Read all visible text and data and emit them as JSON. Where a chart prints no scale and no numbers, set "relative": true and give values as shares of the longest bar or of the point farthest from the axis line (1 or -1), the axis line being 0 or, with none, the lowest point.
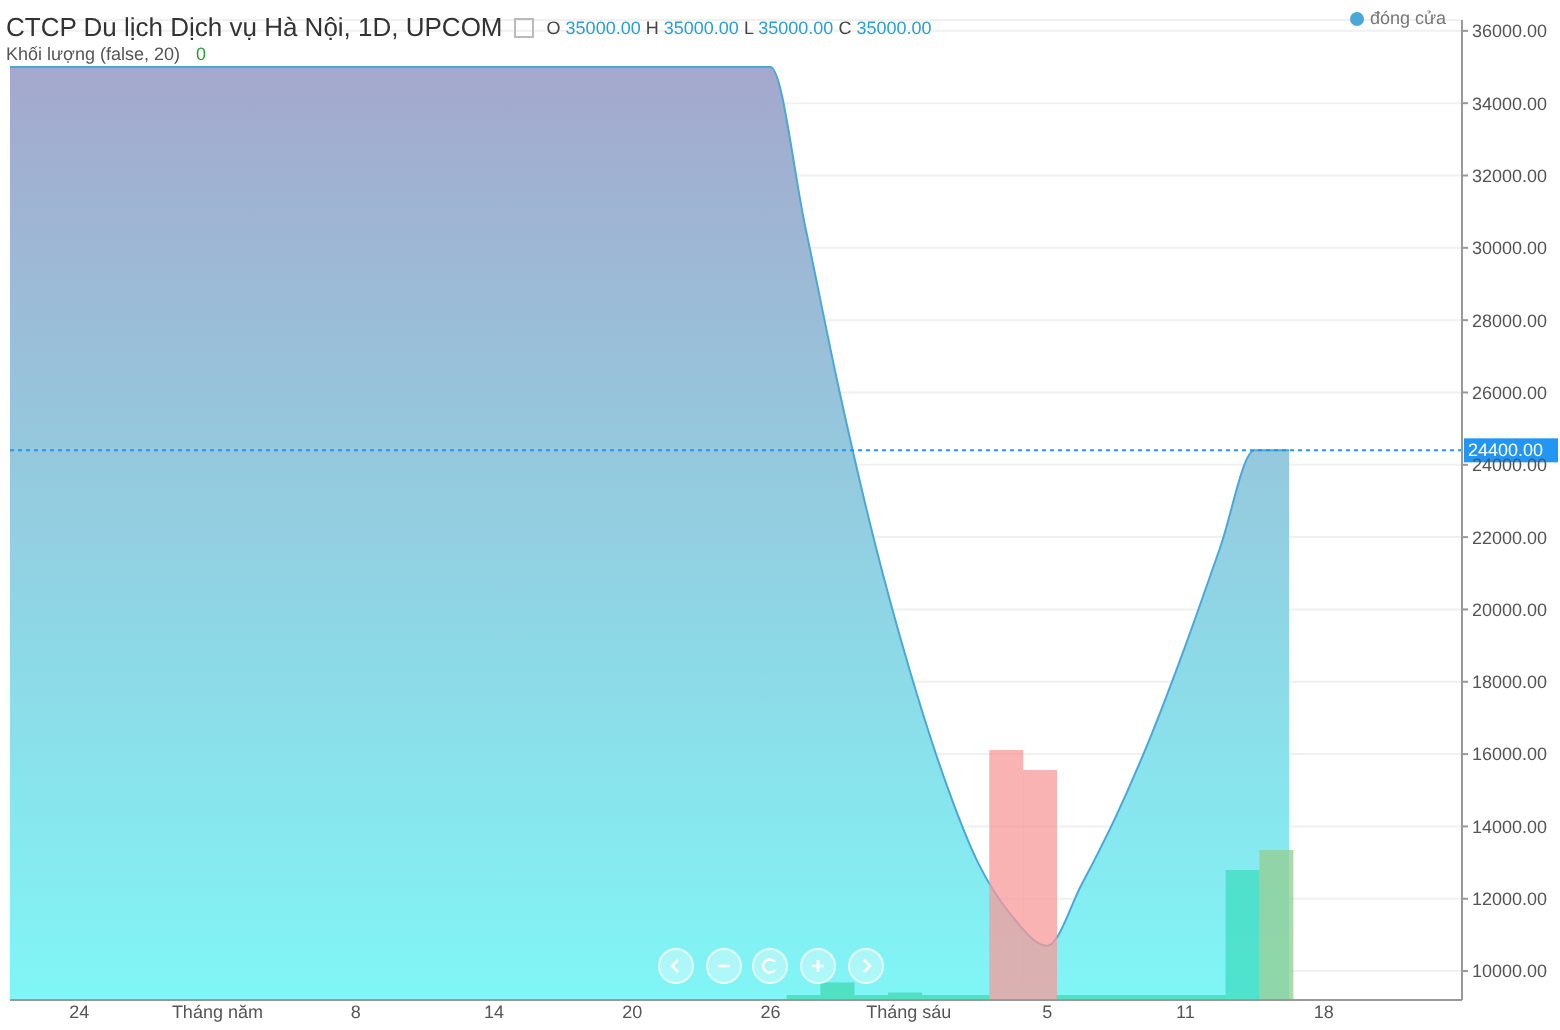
{
  "chart_data": [
    {
      "type": "area",
      "title": "CTCP Du lịch Dịch vụ Hà Nội, 1D, UPCOM",
      "annotations": [
        "O 35000.00 H 35000.00 L 35000.00 C 35000.00"
      ],
      "categories": [
        null,
        null,
        "24",
        null,
        null,
        null,
        "Tháng năm",
        null,
        null,
        null,
        "8",
        null,
        null,
        null,
        "14",
        null,
        null,
        null,
        "20",
        null,
        null,
        null,
        "26",
        null,
        null,
        null,
        "Tháng sáu",
        null,
        null,
        null,
        "5",
        null,
        null,
        null,
        "11",
        null,
        null,
        null,
        "18",
        null,
        null,
        null,
        null
      ],
      "series": [
        {
          "name": "đóng cửa",
          "color": "#4aa8d8",
          "values": [
            35000,
            35000,
            35000,
            35000,
            35000,
            35000,
            35000,
            35000,
            35000,
            35000,
            35000,
            35000,
            35000,
            35000,
            35000,
            35000,
            35000,
            35000,
            35000,
            35000,
            35000,
            35000,
            35000,
            30600,
            26000,
            21900,
            18400,
            15400,
            13000,
            11500,
            10700,
            12400,
            14300,
            16500,
            19000,
            21700,
            24400,
            24400,
            null,
            null,
            null,
            null,
            null
          ]
        }
      ],
      "ylim": [
        9200,
        36300
      ],
      "yticks": [
        {
          "value": 10000,
          "label": "10000.00"
        },
        {
          "value": 12000,
          "label": "12000.00"
        },
        {
          "value": 14000,
          "label": "14000.00"
        },
        {
          "value": 16000,
          "label": "16000.00"
        },
        {
          "value": 18000,
          "label": "18000.00"
        },
        {
          "value": 20000,
          "label": "20000.00"
        },
        {
          "value": 22000,
          "label": "22000.00"
        },
        {
          "value": 24000,
          "label": "24000.00"
        },
        {
          "value": 26000,
          "label": "26000.00"
        },
        {
          "value": 28000,
          "label": "28000.00"
        },
        {
          "value": 30000,
          "label": "30000.00"
        },
        {
          "value": 32000,
          "label": "32000.00"
        },
        {
          "value": 34000,
          "label": "34000.00"
        },
        {
          "value": 36000,
          "label": "36000.00"
        }
      ],
      "ref_lines": [
        {
          "axis": "y",
          "value": 24400,
          "label": "24400.00",
          "color": "#2196f3",
          "line_style": "dotted"
        }
      ],
      "grid": "y",
      "legend": "top right",
      "marker": "none"
    },
    {
      "type": "bar",
      "title": "Khối lượng (false, 20)",
      "annotations": [
        "0"
      ],
      "relative": true,
      "tick_labels": false,
      "values": [
        null,
        null,
        null,
        null,
        null,
        null,
        null,
        null,
        null,
        null,
        null,
        null,
        null,
        null,
        null,
        null,
        null,
        null,
        null,
        null,
        null,
        null,
        null,
        0.02,
        0.07,
        0.02,
        0.03,
        0.02,
        0.02,
        1,
        0.92,
        0.02,
        0.02,
        0.02,
        0.02,
        0.02,
        0.52,
        0.6,
        null,
        null,
        null,
        null,
        null
      ],
      "colors": [
        "#40d8b0",
        "#40d8b0",
        "#40d8b0",
        "#40d8b0",
        "#40d8b0",
        "#40d8b0",
        "#40d8b0",
        "#40d8b0",
        "#40d8b0",
        "#40d8b0",
        "#40d8b0",
        "#40d8b0",
        "#40d8b0",
        "#40d8b0",
        "#40d8b0",
        "#40d8b0",
        "#40d8b0",
        "#40d8b0",
        "#40d8b0",
        "#40d8b0",
        "#40d8b0",
        "#40d8b0",
        "#40d8b0",
        "#40d8b0",
        "#40d8b0",
        "#40d8b0",
        "#40d8b0",
        "#40d8b0",
        "#40d8b0",
        "#f89a9a",
        "#f89a9a",
        "#40d8b0",
        "#40d8b0",
        "#40d8b0",
        "#40d8b0",
        "#40d8b0",
        "#3fdcc0",
        "#94cc90",
        "#40d8b0",
        "#40d8b0",
        "#40d8b0",
        "#40d8b0",
        "#40d8b0"
      ]
    }
  ]
}
